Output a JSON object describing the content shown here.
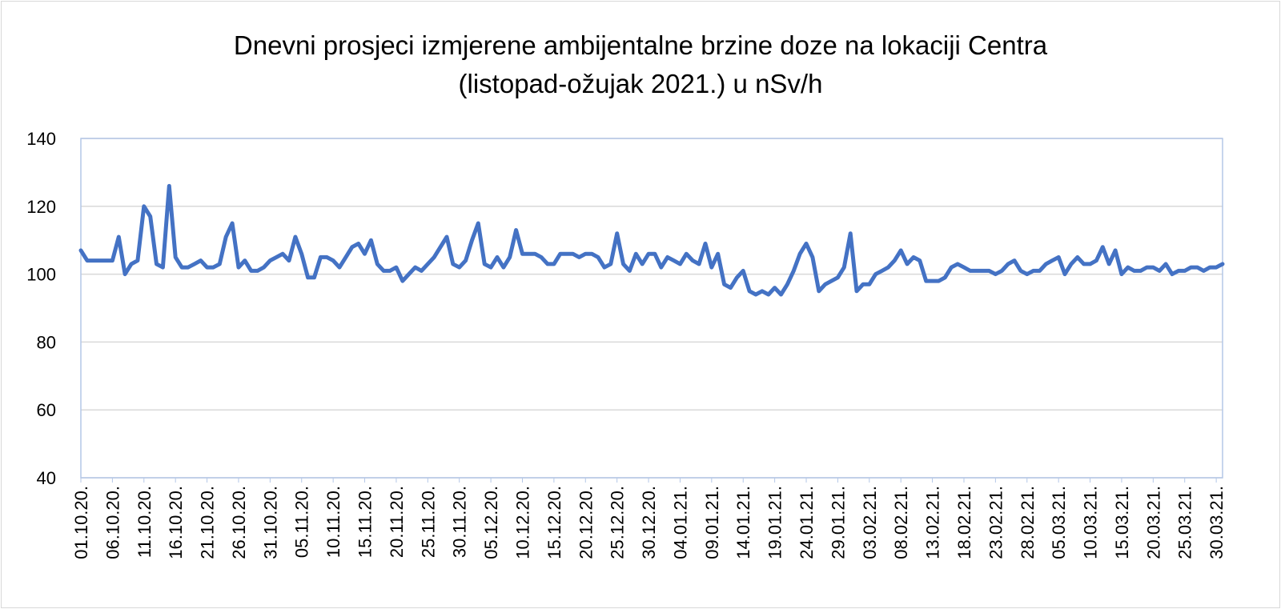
{
  "chart_data": {
    "type": "line",
    "title_line1": "Dnevni prosjeci izmjerene ambijentalne brzine doze na lokaciji Centra",
    "title_line2": "(listopad-ožujak 2021.) u nSv/h",
    "xlabel": "",
    "ylabel": "",
    "ylim": [
      40,
      140
    ],
    "yticks": [
      40,
      60,
      80,
      100,
      120,
      140
    ],
    "grid": true,
    "legend": "none",
    "color": "#4472c4",
    "x_tick_labels": [
      "01.10.20.",
      "06.10.20.",
      "11.10.20.",
      "16.10.20.",
      "21.10.20.",
      "26.10.20.",
      "31.10.20.",
      "05.11.20.",
      "10.11.20.",
      "15.11.20.",
      "20.11.20.",
      "25.11.20.",
      "30.11.20.",
      "05.12.20.",
      "10.12.20.",
      "15.12.20.",
      "20.12.20.",
      "25.12.20.",
      "30.12.20.",
      "04.01.21.",
      "09.01.21.",
      "14.01.21.",
      "19.01.21.",
      "24.01.21.",
      "29.01.21.",
      "03.02.21.",
      "08.02.21.",
      "13.02.21.",
      "18.02.21.",
      "23.02.21.",
      "28.02.21.",
      "05.03.21.",
      "10.03.21.",
      "15.03.21.",
      "20.03.21.",
      "25.03.21.",
      "30.03.21."
    ],
    "series": [
      {
        "name": "",
        "values": [
          107,
          104,
          104,
          104,
          104,
          104,
          111,
          100,
          103,
          104,
          120,
          117,
          103,
          102,
          126,
          105,
          102,
          102,
          103,
          104,
          102,
          102,
          103,
          111,
          115,
          102,
          104,
          101,
          101,
          102,
          104,
          105,
          106,
          104,
          111,
          106,
          99,
          99,
          105,
          105,
          104,
          102,
          105,
          108,
          109,
          106,
          110,
          103,
          101,
          101,
          102,
          98,
          100,
          102,
          101,
          103,
          105,
          108,
          111,
          103,
          102,
          104,
          110,
          115,
          103,
          102,
          105,
          102,
          105,
          113,
          106,
          106,
          106,
          105,
          103,
          103,
          106,
          106,
          106,
          105,
          106,
          106,
          105,
          102,
          103,
          112,
          103,
          101,
          106,
          103,
          106,
          106,
          102,
          105,
          104,
          103,
          106,
          104,
          103,
          109,
          102,
          106,
          97,
          96,
          99,
          101,
          95,
          94,
          95,
          94,
          96,
          94,
          97,
          101,
          106,
          109,
          105,
          95,
          97,
          98,
          99,
          102,
          112,
          95,
          97,
          97,
          100,
          101,
          102,
          104,
          107,
          103,
          105,
          104,
          98,
          98,
          98,
          99,
          102,
          103,
          102,
          101,
          101,
          101,
          101,
          100,
          101,
          103,
          104,
          101,
          100,
          101,
          101,
          103,
          104,
          105,
          100,
          103,
          105,
          103,
          103,
          104,
          108,
          103,
          107,
          100,
          102,
          101,
          101,
          102,
          102,
          101,
          103,
          100,
          101,
          101,
          102,
          102,
          101,
          102,
          102,
          103
        ]
      }
    ]
  }
}
